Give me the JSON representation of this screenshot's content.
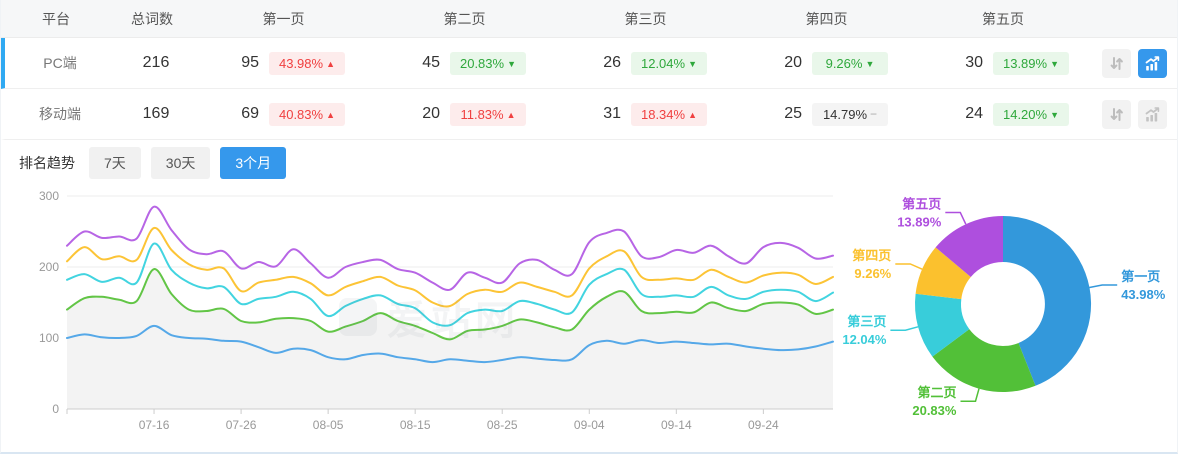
{
  "colors": {
    "accent": "#3598ec",
    "row_indicator": "#2fa9f2",
    "badge_red_text": "#f04040",
    "badge_green_text": "#2fa83c",
    "axis_text": "#999999",
    "grid_line": "#ececec"
  },
  "table": {
    "headers": [
      "平台",
      "总词数",
      "第一页",
      "第二页",
      "第三页",
      "第四页",
      "第五页"
    ],
    "rows": [
      {
        "platform": "PC端",
        "total": "216",
        "selected": true,
        "chart_active": true,
        "pages": [
          {
            "count": "95",
            "pct": "43.98%",
            "dir": "up",
            "tone": "red"
          },
          {
            "count": "45",
            "pct": "20.83%",
            "dir": "down",
            "tone": "green"
          },
          {
            "count": "26",
            "pct": "12.04%",
            "dir": "down",
            "tone": "green"
          },
          {
            "count": "20",
            "pct": "9.26%",
            "dir": "down",
            "tone": "green"
          },
          {
            "count": "30",
            "pct": "13.89%",
            "dir": "down",
            "tone": "green"
          }
        ]
      },
      {
        "platform": "移动端",
        "total": "169",
        "selected": false,
        "chart_active": false,
        "pages": [
          {
            "count": "69",
            "pct": "40.83%",
            "dir": "up",
            "tone": "red"
          },
          {
            "count": "20",
            "pct": "11.83%",
            "dir": "up",
            "tone": "red"
          },
          {
            "count": "31",
            "pct": "18.34%",
            "dir": "up",
            "tone": "red"
          },
          {
            "count": "25",
            "pct": "14.79%",
            "dir": "flat",
            "tone": "gray"
          },
          {
            "count": "24",
            "pct": "14.20%",
            "dir": "down",
            "tone": "green"
          }
        ]
      }
    ]
  },
  "trend": {
    "label": "排名趋势",
    "tabs": [
      {
        "label": "7天",
        "active": false
      },
      {
        "label": "30天",
        "active": false
      },
      {
        "label": "3个月",
        "active": true
      }
    ]
  },
  "watermark": "爱站网",
  "chart_data": [
    {
      "type": "line",
      "title": "排名趋势 (3个月)",
      "ylabel": "",
      "xlabel": "",
      "ylim": [
        0,
        300
      ],
      "y_ticks": [
        0,
        100,
        200,
        300
      ],
      "x_ticks": [
        "07-16",
        "07-26",
        "08-05",
        "08-15",
        "08-25",
        "09-04",
        "09-14",
        "09-24"
      ],
      "tick_indices": [
        5,
        10,
        15,
        20,
        25,
        30,
        35,
        40
      ],
      "grid": true,
      "legend": false,
      "series": [
        {
          "name": "第一页",
          "color": "#55a8e8",
          "values": [
            100,
            105,
            101,
            100,
            103,
            117,
            104,
            100,
            99,
            96,
            95,
            87,
            79,
            85,
            83,
            73,
            70,
            76,
            78,
            73,
            70,
            66,
            70,
            68,
            66,
            69,
            73,
            71,
            69,
            70,
            90,
            96,
            92,
            97,
            93,
            95,
            93,
            91,
            92,
            88,
            85,
            83,
            84,
            88,
            95
          ]
        },
        {
          "name": "第二页",
          "color": "#62c546",
          "area": "#f3f3f3",
          "values": [
            140,
            156,
            158,
            154,
            152,
            197,
            162,
            140,
            138,
            141,
            124,
            122,
            127,
            128,
            124,
            109,
            116,
            124,
            135,
            124,
            117,
            107,
            98,
            110,
            112,
            117,
            126,
            122,
            115,
            112,
            140,
            158,
            165,
            138,
            135,
            137,
            136,
            150,
            142,
            138,
            148,
            150,
            147,
            134,
            140
          ]
        },
        {
          "name": "第三页",
          "color": "#42d4e0",
          "values": [
            182,
            190,
            179,
            185,
            178,
            233,
            196,
            178,
            170,
            172,
            148,
            155,
            158,
            165,
            155,
            131,
            145,
            155,
            160,
            148,
            142,
            122,
            118,
            135,
            140,
            138,
            152,
            148,
            140,
            136,
            175,
            190,
            196,
            162,
            158,
            160,
            158,
            172,
            160,
            155,
            165,
            168,
            165,
            152,
            164
          ]
        },
        {
          "name": "第四页",
          "color": "#fcc436",
          "values": [
            208,
            228,
            211,
            215,
            210,
            255,
            224,
            204,
            196,
            198,
            166,
            178,
            182,
            186,
            177,
            160,
            172,
            180,
            186,
            174,
            167,
            150,
            145,
            162,
            168,
            165,
            178,
            172,
            165,
            160,
            198,
            215,
            222,
            186,
            182,
            184,
            182,
            196,
            186,
            178,
            188,
            192,
            189,
            176,
            186
          ]
        },
        {
          "name": "第五页",
          "color": "#b765e5",
          "values": [
            230,
            250,
            241,
            243,
            240,
            285,
            252,
            225,
            218,
            222,
            198,
            207,
            201,
            225,
            205,
            185,
            200,
            207,
            210,
            197,
            192,
            178,
            168,
            192,
            185,
            178,
            205,
            210,
            196,
            190,
            235,
            248,
            250,
            215,
            214,
            224,
            220,
            230,
            215,
            205,
            228,
            234,
            227,
            212,
            216
          ]
        }
      ]
    },
    {
      "type": "pie",
      "donut": true,
      "title": "",
      "slices": [
        {
          "label": "第一页",
          "value": 43.98,
          "display": "43.98%",
          "color": "#3398db"
        },
        {
          "label": "第二页",
          "value": 20.83,
          "display": "20.83%",
          "color": "#52c038"
        },
        {
          "label": "第三页",
          "value": 12.04,
          "display": "12.04%",
          "color": "#38cdda"
        },
        {
          "label": "第四页",
          "value": 9.26,
          "display": "9.26%",
          "color": "#fbc12e"
        },
        {
          "label": "第五页",
          "value": 13.89,
          "display": "13.89%",
          "color": "#ae4fde"
        }
      ]
    }
  ]
}
